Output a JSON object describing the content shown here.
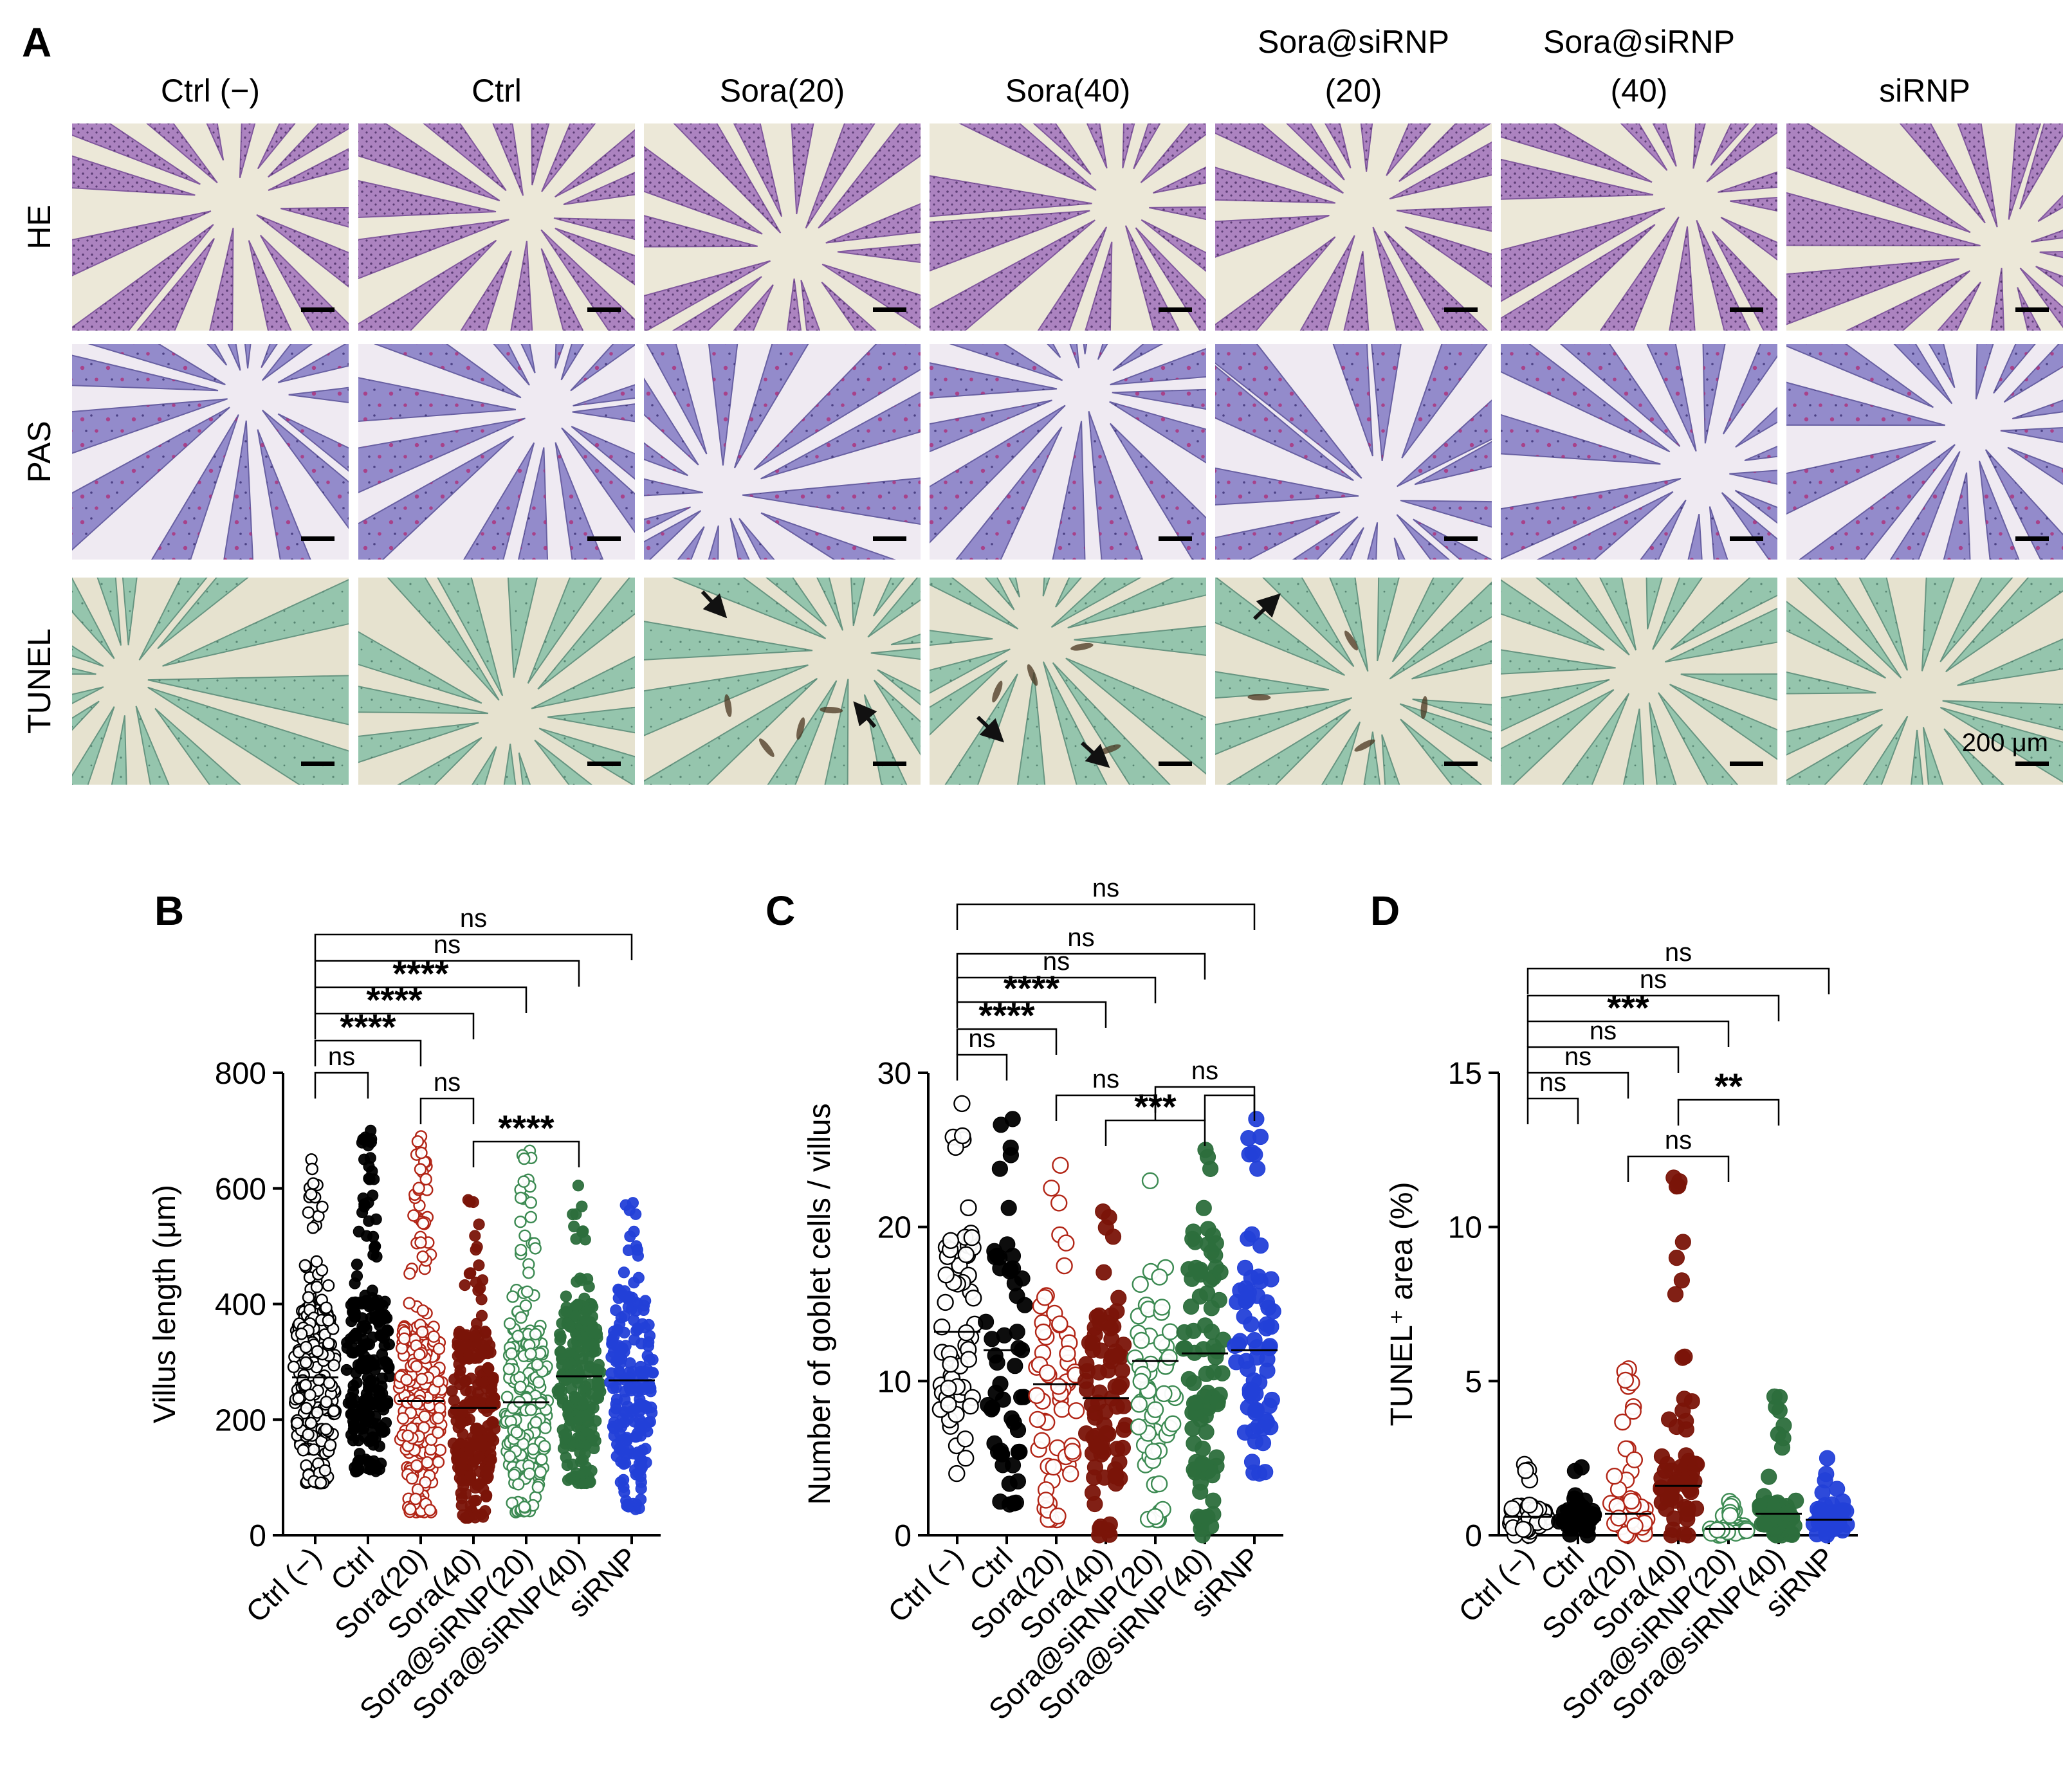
{
  "panel_a": {
    "letter": "A",
    "columns": [
      "Ctrl (−)",
      "Ctrl",
      "Sora(20)",
      "Sora(40)",
      "Sora@siRNP\n(20)",
      "Sora@siRNP\n(40)",
      "siRNP"
    ],
    "rows": [
      "HE",
      "PAS",
      "TUNEL"
    ],
    "scale_bar_label": "200 μm"
  },
  "colors": {
    "ctrl_neg": "#000000",
    "ctrl": "#000000",
    "sora20": "#b22516",
    "sora40": "#7a1408",
    "sorasirnp20": "#3c8a52",
    "sorasirnp40": "#2c6e3c",
    "sirnp": "#2340d8",
    "he_bg": "#ece8d8",
    "he_tissue": "#a77bbf",
    "pas_bg": "#efeaf2",
    "pas_tissue": "#8c83c8",
    "tunel_bg": "#e6e2cf",
    "tunel_tissue": "#8fc3ab"
  },
  "chart_data": [
    {
      "type": "scatter",
      "panel": "B",
      "categories": [
        "Ctrl (−)",
        "Ctrl",
        "Sora(20)",
        "Sora(40)",
        "Sora@siRNP(20)",
        "Sora@siRNP(40)",
        "siRNP"
      ],
      "ylabel": "Villus length (μm)",
      "ylim": [
        0,
        800
      ],
      "yticks": [
        0,
        200,
        400,
        600,
        800
      ],
      "filled": [
        false,
        true,
        false,
        true,
        false,
        true,
        true
      ],
      "ranges": [
        [
          90,
          650
        ],
        [
          110,
          700
        ],
        [
          40,
          690
        ],
        [
          30,
          580
        ],
        [
          40,
          665
        ],
        [
          90,
          605
        ],
        [
          45,
          575
        ]
      ],
      "means": [
        273,
        288,
        232,
        220,
        230,
        275,
        268
      ],
      "comparisons": [
        {
          "groups": [
            0,
            1
          ],
          "label": "ns"
        },
        {
          "groups": [
            0,
            2
          ],
          "label": "****"
        },
        {
          "groups": [
            0,
            3
          ],
          "label": "****"
        },
        {
          "groups": [
            0,
            4
          ],
          "label": "****"
        },
        {
          "groups": [
            0,
            5
          ],
          "label": "ns"
        },
        {
          "groups": [
            0,
            6
          ],
          "label": "ns"
        },
        {
          "groups": [
            2,
            3
          ],
          "label": "ns"
        },
        {
          "groups": [
            3,
            5
          ],
          "label": "****"
        }
      ]
    },
    {
      "type": "scatter",
      "panel": "C",
      "categories": [
        "Ctrl (−)",
        "Ctrl",
        "Sora(20)",
        "Sora(40)",
        "Sora@siRNP(20)",
        "Sora@siRNP(40)",
        "siRNP"
      ],
      "ylabel": "Number of goblet cells / villus",
      "ylim": [
        0,
        30
      ],
      "yticks": [
        0,
        10,
        20,
        30
      ],
      "filled": [
        false,
        true,
        false,
        true,
        false,
        true,
        true
      ],
      "ranges": [
        [
          4,
          28
        ],
        [
          2,
          27
        ],
        [
          1,
          24
        ],
        [
          0,
          21
        ],
        [
          1,
          23
        ],
        [
          0,
          25
        ],
        [
          4,
          27
        ]
      ],
      "means": [
        13.2,
        12.0,
        9.8,
        8.9,
        11.3,
        11.8,
        12.0
      ],
      "comparisons": [
        {
          "groups": [
            0,
            1
          ],
          "label": "ns"
        },
        {
          "groups": [
            0,
            2
          ],
          "label": "****"
        },
        {
          "groups": [
            0,
            3
          ],
          "label": "****"
        },
        {
          "groups": [
            0,
            4
          ],
          "label": "ns"
        },
        {
          "groups": [
            0,
            5
          ],
          "label": "ns"
        },
        {
          "groups": [
            0,
            6
          ],
          "label": "ns"
        },
        {
          "groups": [
            2,
            4
          ],
          "label": "ns"
        },
        {
          "groups": [
            3,
            5
          ],
          "label": "***"
        },
        {
          "groups": [
            4,
            6
          ],
          "label": "ns"
        },
        {
          "groups": [
            5,
            6
          ],
          "label": ""
        }
      ]
    },
    {
      "type": "scatter",
      "panel": "D",
      "categories": [
        "Ctrl (−)",
        "Ctrl",
        "Sora(20)",
        "Sora(40)",
        "Sora@siRNP(20)",
        "Sora@siRNP(40)",
        "siRNP"
      ],
      "ylabel": "TUNEL⁺ area (%)",
      "ylim": [
        0,
        15
      ],
      "yticks": [
        0,
        5,
        10,
        15
      ],
      "filled": [
        false,
        true,
        false,
        true,
        false,
        true,
        true
      ],
      "ranges": [
        [
          0,
          2.3
        ],
        [
          0,
          2.2
        ],
        [
          0,
          5.4
        ],
        [
          0,
          11.6
        ],
        [
          0,
          1.1
        ],
        [
          0,
          4.5
        ],
        [
          0,
          2.5
        ]
      ],
      "means": [
        0.6,
        0.5,
        0.7,
        1.6,
        0.2,
        0.7,
        0.5
      ],
      "comparisons": [
        {
          "groups": [
            0,
            1
          ],
          "label": "ns"
        },
        {
          "groups": [
            0,
            2
          ],
          "label": "ns"
        },
        {
          "groups": [
            0,
            3
          ],
          "label": "ns"
        },
        {
          "groups": [
            0,
            4
          ],
          "label": "***"
        },
        {
          "groups": [
            0,
            5
          ],
          "label": "ns"
        },
        {
          "groups": [
            0,
            6
          ],
          "label": "ns"
        },
        {
          "groups": [
            2,
            4
          ],
          "label": "ns"
        },
        {
          "groups": [
            3,
            5
          ],
          "label": "**"
        }
      ]
    }
  ],
  "chart_letters": [
    "B",
    "C",
    "D"
  ]
}
